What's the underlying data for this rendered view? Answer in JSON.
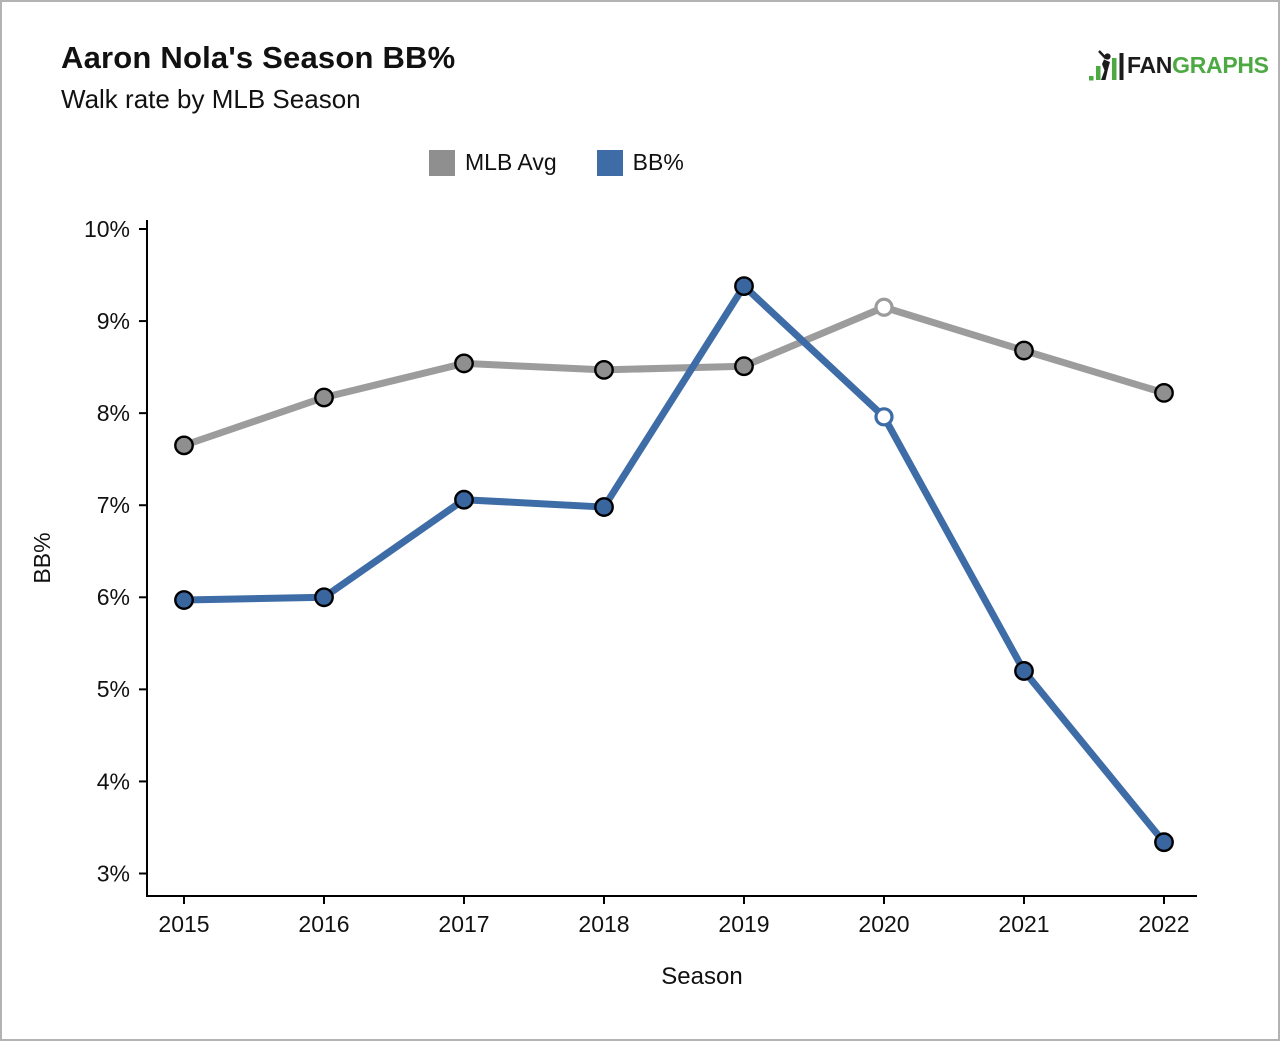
{
  "page": {
    "title": "Aaron Nola's Season BB%",
    "subtitle": "Walk rate by MLB Season"
  },
  "logo": {
    "fan": "FAN",
    "graphs": "GRAPHS",
    "green": "#4DA942",
    "black": "#1c1c1c"
  },
  "chart_data": {
    "type": "line",
    "title": "Aaron Nola's Season BB%",
    "subtitle": "Walk rate by MLB Season",
    "x": [
      2015,
      2016,
      2017,
      2018,
      2019,
      2020,
      2021,
      2022
    ],
    "xlabel": "Season",
    "ylabel": "BB%",
    "yticks": [
      3,
      4,
      5,
      6,
      7,
      8,
      9,
      10
    ],
    "ytick_suffix": "%",
    "ylim": [
      3,
      10
    ],
    "grid": false,
    "legend_position": "top-center",
    "axis_color": "#000000",
    "marker_outline": "#000000",
    "series": [
      {
        "name": "MLB Avg",
        "color": "#9C9C9C",
        "swatch_color": "#8F8F8F",
        "marker_fill": "#8F8F8F",
        "values": [
          7.65,
          8.17,
          8.54,
          8.47,
          8.51,
          9.15,
          8.68,
          8.22
        ],
        "open_marker_indices": [
          5
        ]
      },
      {
        "name": "BB%",
        "color": "#3E6CA6",
        "swatch_color": "#3E6CA6",
        "marker_fill": "#3A66A0",
        "values": [
          5.97,
          6.0,
          7.06,
          6.98,
          9.38,
          7.96,
          5.2,
          3.34
        ],
        "open_marker_indices": [
          5
        ]
      }
    ]
  }
}
